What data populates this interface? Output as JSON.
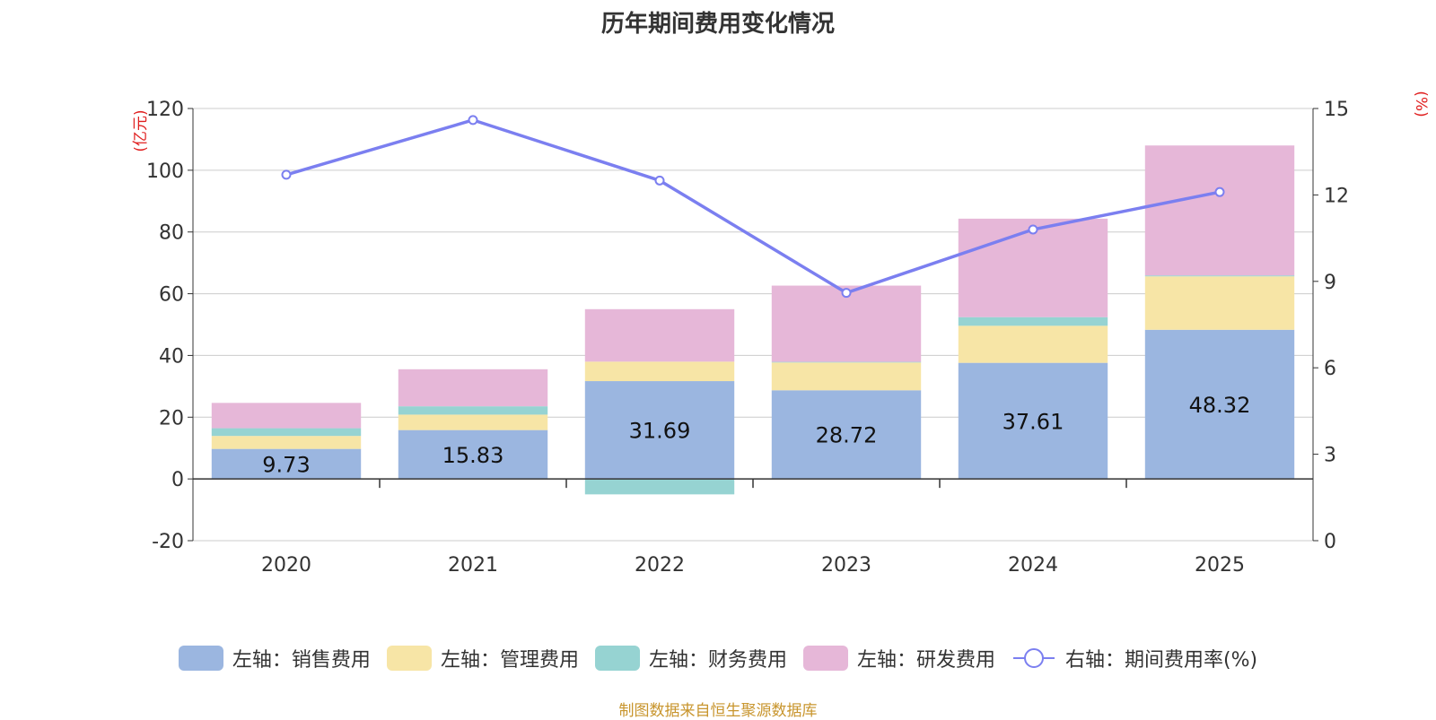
{
  "chart_data": {
    "type": "bar",
    "title": "历年期间费用变化情况",
    "categories": [
      "2020",
      "2021",
      "2022",
      "2023",
      "2024",
      "2025"
    ],
    "left_axis": {
      "unit_label": "(亿元)",
      "ylim": [
        -20,
        120
      ],
      "ticks": [
        -20,
        0,
        20,
        40,
        60,
        80,
        100,
        120
      ]
    },
    "right_axis": {
      "unit_label": "(%)",
      "ylim": [
        0,
        15
      ],
      "ticks": [
        0,
        3,
        6,
        9,
        12,
        15
      ]
    },
    "stacked": true,
    "series": [
      {
        "name": "左轴：销售费用",
        "axis": "left",
        "color": "#9bb6e0",
        "values": [
          9.73,
          15.83,
          31.69,
          28.72,
          37.61,
          48.32
        ],
        "show_labels": true
      },
      {
        "name": "左轴：管理费用",
        "axis": "left",
        "color": "#f7e5a6",
        "values": [
          4.2,
          5.0,
          6.3,
          9.0,
          12.0,
          17.3
        ],
        "show_labels": false
      },
      {
        "name": "左轴：财务费用",
        "axis": "left",
        "color": "#96d3d2",
        "values": [
          2.5,
          2.7,
          -5.0,
          0.2,
          2.8,
          0.3
        ],
        "show_labels": false
      },
      {
        "name": "左轴：研发费用",
        "axis": "left",
        "color": "#e6b7d8",
        "values": [
          8.2,
          12.0,
          17.0,
          24.7,
          31.9,
          42.1
        ],
        "show_labels": false
      }
    ],
    "line_series": {
      "name": "右轴：期间费用率(%)",
      "axis": "right",
      "color": "#7b7ff0",
      "values": [
        12.7,
        14.6,
        12.5,
        8.6,
        10.8,
        12.1
      ]
    }
  },
  "source_text": "制图数据来自恒生聚源数据库"
}
